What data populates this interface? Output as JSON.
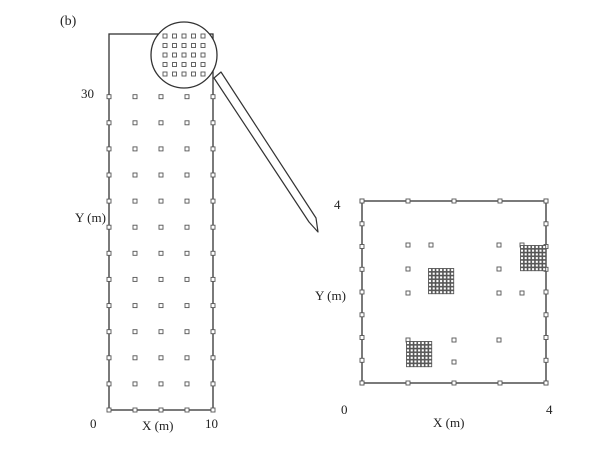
{
  "panel_label": "(b)",
  "colors": {
    "ink": "#333333",
    "sensor": "#555555",
    "background": "#ffffff"
  },
  "left_plot": {
    "xlabel": "X (m)",
    "ylabel": "Y (m)",
    "x_ticks": [
      "0",
      "10"
    ],
    "y_ticks": [
      "30"
    ],
    "x_range": [
      0,
      10
    ],
    "y_range": [
      0,
      36
    ],
    "grid_columns_m": [
      0,
      2.5,
      5,
      7.5,
      10
    ],
    "grid_rows_m": [
      0,
      2.5,
      5,
      7.5,
      10,
      12.5,
      15,
      17.5,
      20,
      22.5,
      25,
      27.5,
      30
    ],
    "magnified_points_count": 25
  },
  "right_plot": {
    "xlabel": "X (m)",
    "ylabel": "Y (m)",
    "x_ticks": [
      "0",
      "4"
    ],
    "y_ticks": [
      "4"
    ],
    "x_range": [
      0,
      4
    ],
    "y_range": [
      0,
      4
    ],
    "dense_clusters": [
      "cluster-center-left",
      "cluster-lower-left",
      "cluster-upper-right"
    ]
  },
  "callout": {
    "shape": "circle-with-arrow",
    "direction": "left-to-right-down"
  }
}
